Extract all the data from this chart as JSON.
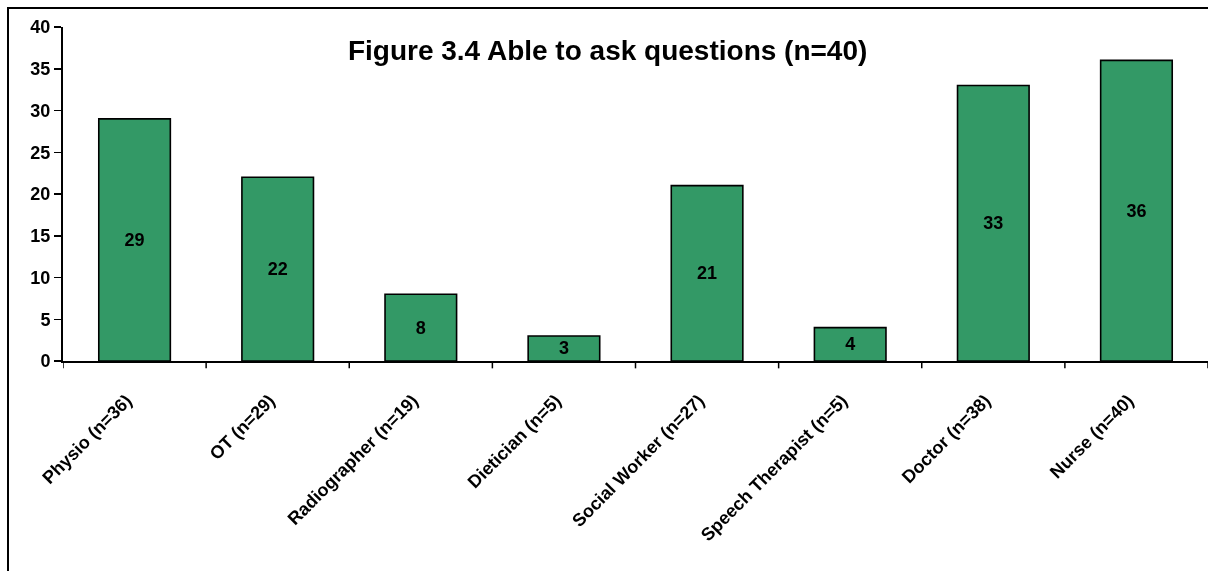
{
  "chart_data": {
    "type": "bar",
    "title": "Figure 3.4 Able to ask questions (n=40)",
    "categories": [
      "Physio (n=36)",
      "OT (n=29)",
      "Radiographer (n=19)",
      "Dietician (n=5)",
      "Social Worker (n=27)",
      "Speech Therapist (n=5)",
      "Doctor (n=38)",
      "Nurse (n=40)"
    ],
    "values": [
      29,
      22,
      8,
      3,
      21,
      4,
      33,
      36
    ],
    "color": "#339966",
    "ylim": [
      0,
      40
    ],
    "yticks": [
      0,
      5,
      10,
      15,
      20,
      25,
      30,
      35,
      40
    ],
    "data_labels": true
  }
}
